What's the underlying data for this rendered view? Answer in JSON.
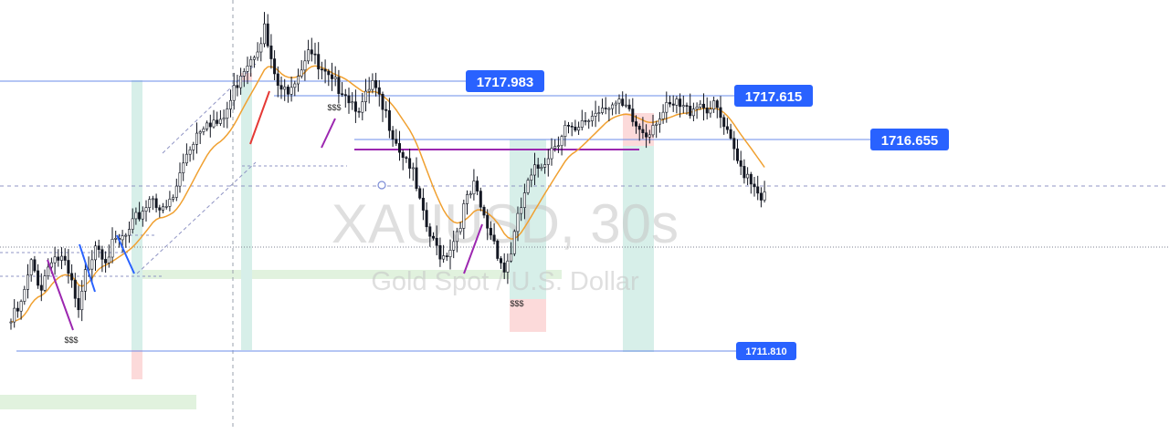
{
  "watermark": {
    "symbol": "XAUUSD, 30s",
    "description": "Gold Spot / U.S. Dollar"
  },
  "price_levels": [
    "1717.983",
    "1717.615",
    "1716.655",
    "1711.810"
  ],
  "markers": [
    "$$$",
    "$$$",
    "$$$"
  ],
  "colors": {
    "background": "#ffffff",
    "candle": "#131722",
    "moving_average": "#f0a030",
    "level_line": "#6b8de8",
    "level_label_bg": "#2962ff",
    "long_zone": "#d7efe9",
    "short_zone": "#fcdada",
    "support_band": "#e1f2de",
    "bearish_swing": "#9c27b0",
    "bullish_swing": "#2962ff",
    "red_swing": "#e53935",
    "liquidity_line": "#9c27b0"
  },
  "chart_data": {
    "type": "candlestick",
    "symbol": "XAUUSD",
    "interval": "30s",
    "title": "XAUUSD, 30s",
    "subtitle": "Gold Spot / U.S. Dollar",
    "ylim": [
      1711.2,
      1719.2
    ],
    "horizontal_levels": [
      1717.983,
      1717.615,
      1716.655,
      1711.81
    ],
    "close_path": [
      [
        0,
        1712.3
      ],
      [
        3,
        1712.6
      ],
      [
        6,
        1713.4
      ],
      [
        9,
        1713.0
      ],
      [
        12,
        1713.6
      ],
      [
        15,
        1713.5
      ],
      [
        18,
        1713.0
      ],
      [
        20,
        1712.4
      ],
      [
        22,
        1713.2
      ],
      [
        25,
        1713.9
      ],
      [
        28,
        1713.6
      ],
      [
        31,
        1713.8
      ],
      [
        35,
        1714.0
      ],
      [
        38,
        1714.4
      ],
      [
        42,
        1714.8
      ],
      [
        45,
        1714.4
      ],
      [
        48,
        1714.7
      ],
      [
        52,
        1715.6
      ],
      [
        55,
        1716.0
      ],
      [
        58,
        1716.3
      ],
      [
        62,
        1716.1
      ],
      [
        65,
        1716.6
      ],
      [
        68,
        1717.2
      ],
      [
        72,
        1717.6
      ],
      [
        75,
        1718.0
      ],
      [
        77,
        1717.3
      ],
      [
        80,
        1716.7
      ],
      [
        83,
        1717.0
      ],
      [
        86,
        1717.3
      ],
      [
        88,
        1717.7
      ],
      [
        91,
        1717.2
      ],
      [
        95,
        1716.9
      ],
      [
        98,
        1716.9
      ],
      [
        101,
        1716.6
      ],
      [
        104,
        1716.5
      ],
      [
        107,
        1716.9
      ],
      [
        110,
        1716.4
      ],
      [
        112,
        1716.2
      ],
      [
        115,
        1715.7
      ],
      [
        118,
        1715.4
      ],
      [
        122,
        1714.3
      ],
      [
        125,
        1713.8
      ],
      [
        128,
        1713.6
      ],
      [
        131,
        1713.9
      ],
      [
        134,
        1714.5
      ],
      [
        137,
        1714.9
      ],
      [
        140,
        1714.3
      ],
      [
        143,
        1713.9
      ],
      [
        146,
        1713.3
      ],
      [
        148,
        1713.7
      ],
      [
        152,
        1714.8
      ],
      [
        155,
        1715.2
      ],
      [
        158,
        1715.5
      ],
      [
        161,
        1715.8
      ],
      [
        164,
        1716.1
      ],
      [
        167,
        1715.9
      ],
      [
        170,
        1716.2
      ],
      [
        173,
        1716.4
      ],
      [
        176,
        1716.6
      ],
      [
        179,
        1716.5
      ],
      [
        182,
        1716.4
      ],
      [
        185,
        1716.1
      ],
      [
        188,
        1716.0
      ],
      [
        191,
        1716.3
      ],
      [
        194,
        1716.4
      ],
      [
        197,
        1716.5
      ],
      [
        200,
        1716.4
      ],
      [
        203,
        1716.6
      ],
      [
        206,
        1716.5
      ],
      [
        209,
        1716.4
      ],
      [
        212,
        1715.9
      ],
      [
        215,
        1715.4
      ],
      [
        218,
        1715.2
      ],
      [
        221,
        1714.9
      ],
      [
        223,
        1714.7
      ]
    ]
  }
}
